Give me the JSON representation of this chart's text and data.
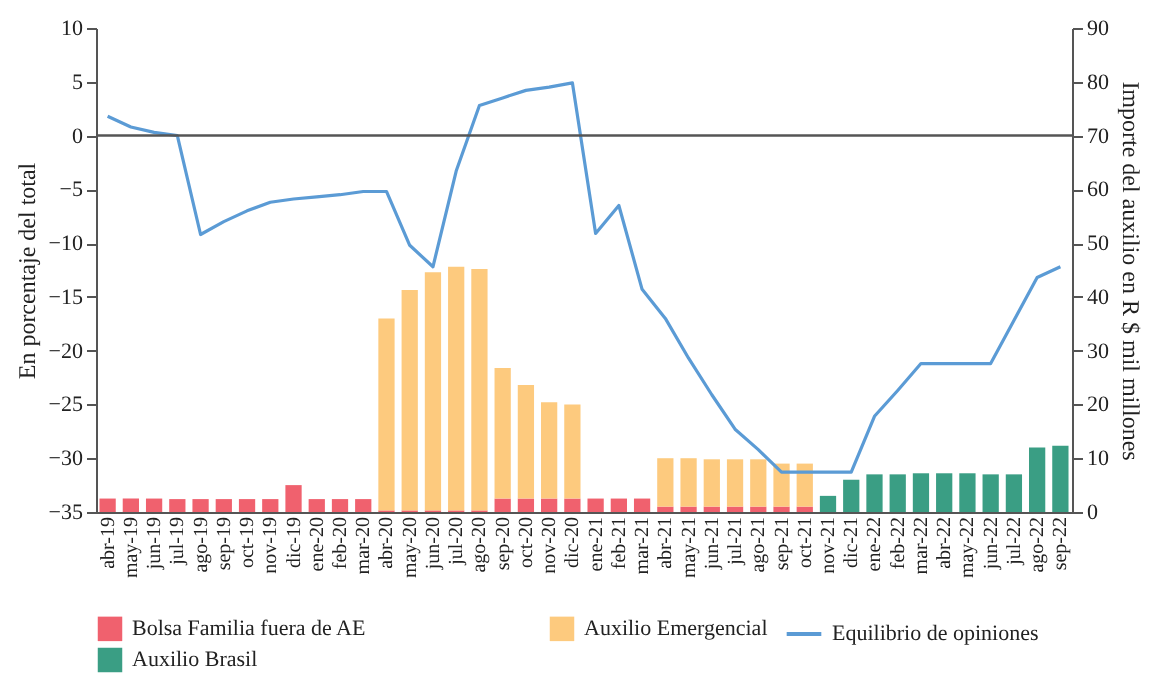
{
  "chart_data": {
    "type": "bar",
    "stacked": true,
    "ylabel": "En porcentaje del total",
    "y2label": "Importe del auxilio en R $ mil millones",
    "categories": [
      "abr-19",
      "may-19",
      "jun-19",
      "jul-19",
      "ago-19",
      "sep-19",
      "oct-19",
      "nov-19",
      "dic-19",
      "ene-20",
      "feb-20",
      "mar-20",
      "abr-20",
      "may-20",
      "jun-20",
      "jul-20",
      "ago-20",
      "sep-20",
      "oct-20",
      "nov-20",
      "dic-20",
      "ene-21",
      "feb-21",
      "mar-21",
      "abr-21",
      "may-21",
      "jun-21",
      "jul-21",
      "ago-21",
      "sep-21",
      "oct-21",
      "nov-21",
      "dic-21",
      "ene-22",
      "feb-22",
      "mar-22",
      "abr-22",
      "may-22",
      "jun-22",
      "jul-22",
      "ago-22",
      "sep-22"
    ],
    "series": [
      {
        "name": "Bolsa Familia fuera de AE",
        "color": "#f0616e",
        "axis": "y2",
        "values": [
          2.5,
          2.5,
          2.5,
          2.4,
          2.4,
          2.4,
          2.4,
          2.4,
          5,
          2.4,
          2.4,
          2.4,
          0.3,
          0.3,
          0.3,
          0.3,
          0.3,
          2.5,
          2.5,
          2.5,
          2.5,
          2.5,
          2.5,
          2.5,
          1,
          1,
          1,
          1,
          1,
          1,
          1,
          null,
          null,
          null,
          null,
          null,
          null,
          null,
          null,
          null,
          null,
          null
        ]
      },
      {
        "name": "Auxilio Emergencial",
        "color": "#fdca7e",
        "axis": "y2",
        "values": [
          null,
          null,
          null,
          null,
          null,
          null,
          null,
          null,
          null,
          null,
          null,
          null,
          35.7,
          41,
          44.3,
          45.3,
          44.9,
          24.3,
          21.1,
          17.9,
          17.5,
          null,
          null,
          null,
          9,
          9,
          8.8,
          8.8,
          8.8,
          8,
          8,
          null,
          null,
          null,
          null,
          null,
          null,
          null,
          null,
          null,
          null,
          null
        ]
      },
      {
        "name": "Auxilio Brasil",
        "color": "#3a9e84",
        "axis": "y2",
        "values": [
          null,
          null,
          null,
          null,
          null,
          null,
          null,
          null,
          null,
          null,
          null,
          null,
          null,
          null,
          null,
          null,
          null,
          null,
          null,
          null,
          null,
          null,
          null,
          null,
          null,
          null,
          null,
          null,
          null,
          null,
          null,
          3,
          6,
          7,
          7,
          7.2,
          7.2,
          7.2,
          7,
          7,
          12,
          12.3
        ]
      },
      {
        "name": "Equilibrio de opiniones",
        "color": "#5b9bd5",
        "type": "line",
        "axis": "y",
        "values": [
          1.8,
          0.8,
          0.3,
          0,
          -9.2,
          -8,
          -7,
          -6.2,
          -5.9,
          -5.7,
          -5.5,
          -5.2,
          -5.2,
          -10.2,
          -12.2,
          -3.3,
          2.8,
          3.5,
          4.2,
          4.5,
          4.9,
          -9.1,
          -6.5,
          -14.3,
          -17,
          -20.7,
          -24.1,
          -27.3,
          -29.2,
          -31.3,
          -31.3,
          -31.3,
          -31.3,
          -26.1,
          -23.7,
          -21.2,
          -21.2,
          -21.2,
          -21.2,
          -17.2,
          -13.2,
          -12.2
        ]
      }
    ],
    "ylim": [
      -35,
      10
    ],
    "yticks": [
      -35,
      -30,
      -25,
      -20,
      -15,
      -10,
      -5,
      0,
      5,
      10
    ],
    "y2lim": [
      0,
      90
    ],
    "y2ticks": [
      0,
      10,
      20,
      30,
      40,
      50,
      60,
      70,
      80,
      90
    ],
    "ref_lines": [
      {
        "axis": "y",
        "value": 0,
        "color": "#555555"
      }
    ],
    "legend": "bottom",
    "grid": false
  }
}
